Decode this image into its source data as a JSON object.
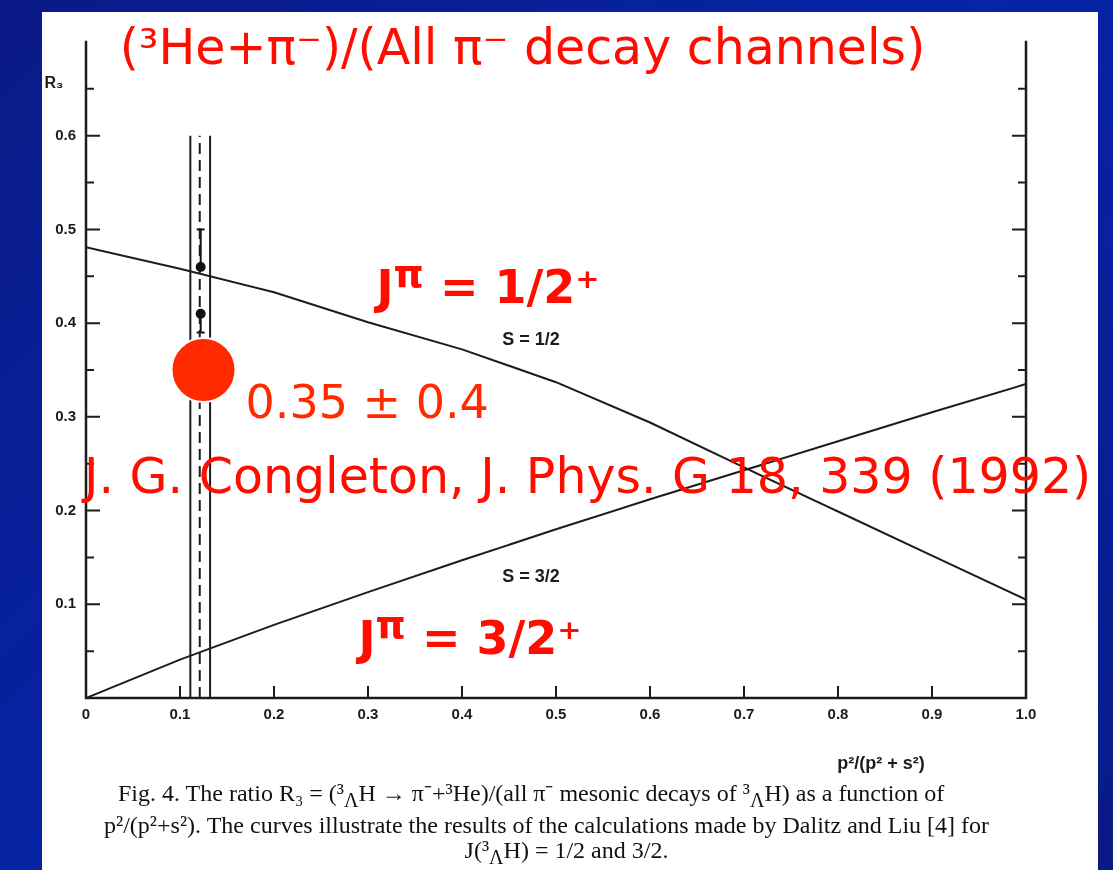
{
  "chart_data": {
    "type": "line",
    "title": "(³He+π⁻)/(All π⁻ decay channels)",
    "xlabel": "p²/(p² + s²)",
    "ylabel": "R₃",
    "xlim": [
      0,
      1
    ],
    "ylim": [
      0,
      0.7
    ],
    "xticks": [
      0,
      0.1,
      0.2,
      0.3,
      0.4,
      0.5,
      0.6,
      0.7,
      0.8,
      0.9,
      {
        "value": 1,
        "label": "1.0"
      }
    ],
    "yticks": [
      {
        "value": 0.05,
        "label": null
      },
      0.1,
      {
        "value": 0.15,
        "label": null
      },
      0.2,
      {
        "value": 0.25,
        "label": null
      },
      0.3,
      {
        "value": 0.35,
        "label": null
      },
      0.4,
      {
        "value": 0.45,
        "label": null
      },
      0.5,
      {
        "value": 0.55,
        "label": null
      },
      0.6,
      {
        "value": 0.65,
        "label": null
      }
    ],
    "series": [
      {
        "name": "S = 1/2",
        "color": "#1c1c1c",
        "x": [
          0,
          0.1,
          0.2,
          0.3,
          0.4,
          0.5,
          0.6,
          0.7,
          0.8,
          0.9,
          1
        ],
        "values": [
          0.481,
          0.458,
          0.433,
          0.401,
          0.372,
          0.337,
          0.294,
          0.246,
          0.199,
          0.152,
          0.105
        ]
      },
      {
        "name": "S = 3/2",
        "color": "#1c1c1c",
        "x": [
          0,
          0.1,
          0.2,
          0.3,
          0.4,
          0.5,
          0.6,
          0.7,
          0.8,
          0.9,
          1
        ],
        "values": [
          0,
          0.041,
          0.078,
          0.113,
          0.147,
          0.18,
          0.212,
          0.243,
          0.274,
          0.305,
          0.335
        ]
      },
      {
        "color": "#1c1c1c",
        "x": [
          0.111,
          0.111
        ],
        "values": [
          0,
          0.6
        ]
      },
      {
        "color": "#1c1c1c",
        "line_style": "dashed",
        "x": [
          0.121,
          0.121
        ],
        "values": [
          0,
          0.6
        ]
      },
      {
        "color": "#1c1c1c",
        "x": [
          0.132,
          0.132
        ],
        "values": [
          0,
          0.6
        ]
      },
      {
        "type": "scatter",
        "color": "#111111",
        "marker": "circle",
        "x": [
          0.122,
          0.122
        ],
        "values": [
          0.46,
          0.41
        ],
        "errors": [
          [
            0.46,
            0.5
          ],
          [
            0.39,
            0.41
          ]
        ]
      },
      {
        "type": "scatter",
        "color": "#ff2a00",
        "marker": "circle",
        "x": [
          0.125
        ],
        "values": [
          0.35
        ],
        "value_labels": [
          "0.35 ± 0.4"
        ]
      }
    ],
    "annotations": [
      "J$^{π}$ = 1/2⁺",
      "J. G. Congleton, J. Phys. G 18, 339 (1992)",
      "J$^{π}$ = 3/2⁺",
      "Fig. 4. The ratio R₃ = (³$_{Λ}$H → π⁻+³He)/(all π⁻ mesonic decays of ³$_{Λ}$H) as a function of p²/(p²+s²). The curves illustrate the results of the calculations made by Dalitz and Liu [4] for J(³$_{Λ}$H) = 1/2 and 3/2."
    ]
  }
}
